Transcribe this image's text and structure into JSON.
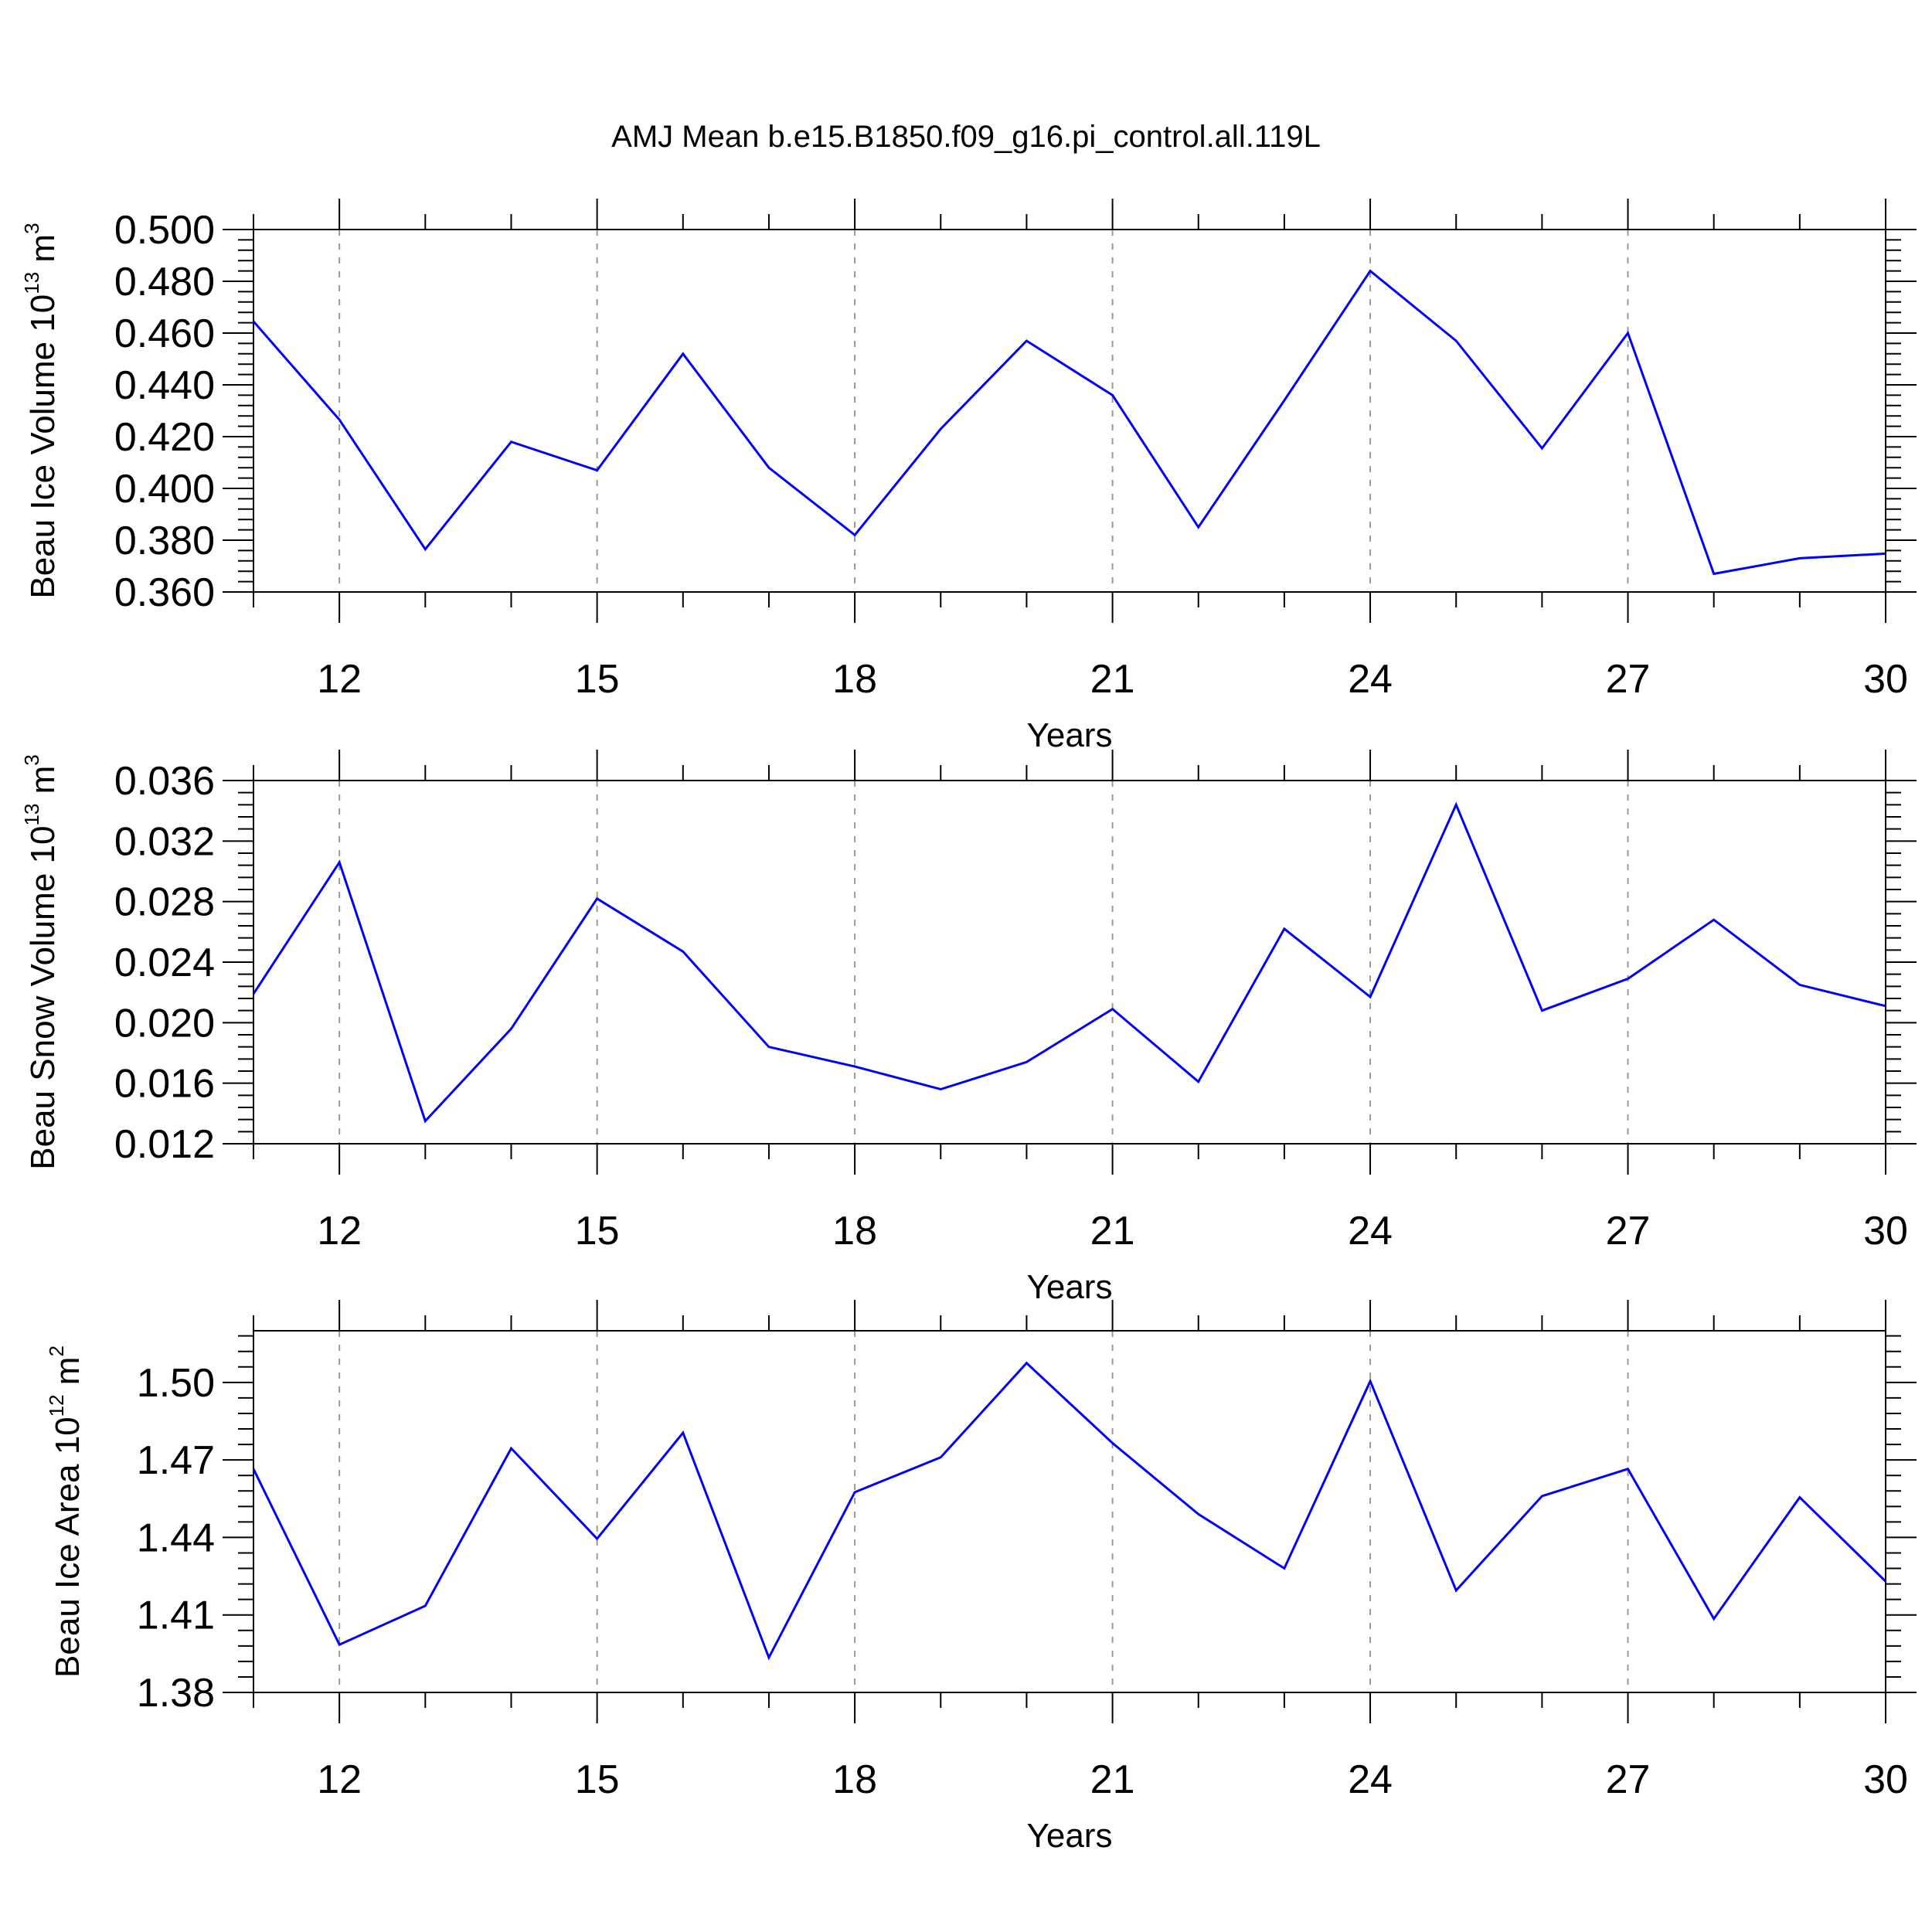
{
  "title": "AMJ Mean b.e15.B1850.f09_g16.pi_control.all.119L",
  "chart_data": [
    {
      "type": "line",
      "ylabel": "Beau Ice Volume 10",
      "ylabel_exp": "13",
      "ylabel_unit": " m",
      "ylabel_unit_exp": "3",
      "xlabel": "Years",
      "xlim": [
        11,
        30
      ],
      "ylim": [
        0.36,
        0.5
      ],
      "yticks": [
        0.36,
        0.38,
        0.4,
        0.42,
        0.44,
        0.46,
        0.48,
        0.5
      ],
      "ytick_labels": [
        "0.360",
        "0.380",
        "0.400",
        "0.420",
        "0.440",
        "0.460",
        "0.480",
        "0.500"
      ],
      "xticks": [
        12,
        15,
        18,
        21,
        24,
        27,
        30
      ],
      "xtick_labels": [
        "12",
        "15",
        "18",
        "21",
        "24",
        "27",
        "30"
      ],
      "grid": "vertical-dashed",
      "x": [
        11,
        12,
        13,
        14,
        15,
        16,
        17,
        18,
        19,
        20,
        21,
        22,
        23,
        24,
        25,
        26,
        27,
        28,
        29,
        30
      ],
      "values": [
        0.4645,
        0.4265,
        0.3765,
        0.418,
        0.407,
        0.452,
        0.408,
        0.382,
        0.423,
        0.457,
        0.436,
        0.385,
        0.434,
        0.484,
        0.457,
        0.4155,
        0.46,
        0.367,
        0.373,
        0.3748
      ]
    },
    {
      "type": "line",
      "ylabel": "Beau Snow Volume 10",
      "ylabel_exp": "13",
      "ylabel_unit": " m",
      "ylabel_unit_exp": "3",
      "xlabel": "Years",
      "xlim": [
        11,
        30
      ],
      "ylim": [
        0.012,
        0.036
      ],
      "yticks": [
        0.012,
        0.016,
        0.02,
        0.024,
        0.028,
        0.032,
        0.036
      ],
      "ytick_labels": [
        "0.012",
        "0.016",
        "0.020",
        "0.024",
        "0.028",
        "0.032",
        "0.036"
      ],
      "xticks": [
        12,
        15,
        18,
        21,
        24,
        27,
        30
      ],
      "xtick_labels": [
        "12",
        "15",
        "18",
        "21",
        "24",
        "27",
        "30"
      ],
      "grid": "vertical-dashed",
      "x": [
        11,
        12,
        13,
        14,
        15,
        16,
        17,
        18,
        19,
        20,
        21,
        22,
        23,
        24,
        25,
        26,
        27,
        28,
        29,
        30
      ],
      "values": [
        0.0219,
        0.0306,
        0.0135,
        0.0196,
        0.0282,
        0.0247,
        0.0184,
        0.0171,
        0.0156,
        0.0174,
        0.0209,
        0.0161,
        0.0262,
        0.0217,
        0.0344,
        0.0208,
        0.0229,
        0.0268,
        0.0225,
        0.0211
      ]
    },
    {
      "type": "line",
      "ylabel": "Beau Ice Area 10",
      "ylabel_exp": "12",
      "ylabel_unit": " m",
      "ylabel_unit_exp": "2",
      "xlabel": "Years",
      "xlim": [
        11,
        30
      ],
      "ylim": [
        1.38,
        1.52
      ],
      "yticks": [
        1.38,
        1.41,
        1.44,
        1.47,
        1.5
      ],
      "ytick_labels": [
        "1.38",
        "1.41",
        "1.44",
        "1.47",
        "1.50"
      ],
      "xticks": [
        12,
        15,
        18,
        21,
        24,
        27,
        30
      ],
      "xtick_labels": [
        "12",
        "15",
        "18",
        "21",
        "24",
        "27",
        "30"
      ],
      "grid": "vertical-dashed",
      "x": [
        11,
        12,
        13,
        14,
        15,
        16,
        17,
        18,
        19,
        20,
        21,
        22,
        23,
        24,
        25,
        26,
        27,
        28,
        29,
        30
      ],
      "values": [
        1.4665,
        1.3985,
        1.4135,
        1.4745,
        1.4395,
        1.4805,
        1.3935,
        1.4575,
        1.471,
        1.5075,
        1.4765,
        1.449,
        1.428,
        1.5005,
        1.4195,
        1.456,
        1.4665,
        1.4085,
        1.4555,
        1.423
      ]
    }
  ]
}
